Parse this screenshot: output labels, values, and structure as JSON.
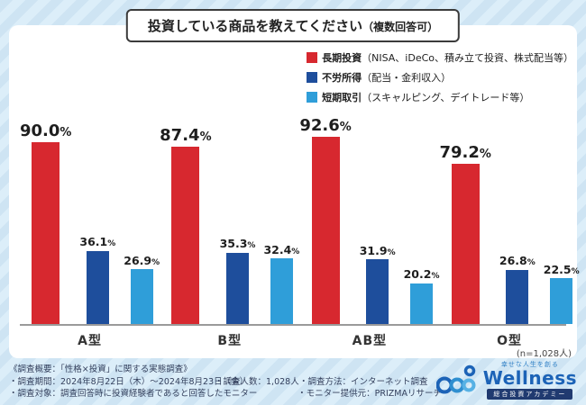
{
  "title": {
    "main": "投資している商品を教えてください",
    "sub": "（複数回答可）"
  },
  "legend": [
    {
      "label": "長期投資",
      "detail": "（NISA、iDeCo、積み立て投資、株式配当等）",
      "color": "#d7282f"
    },
    {
      "label": "不労所得",
      "detail": "（配当・金利収入）",
      "color": "#1e4e9c"
    },
    {
      "label": "短期取引",
      "detail": "（スキャルピング、デイトレード等）",
      "color": "#2f9ed9"
    }
  ],
  "chart_data": {
    "type": "bar",
    "title": "投資している商品を教えてください（複数回答可）",
    "categories": [
      "A型",
      "B型",
      "AB型",
      "O型"
    ],
    "series": [
      {
        "name": "長期投資（NISA、iDeCo、積み立て投資、株式配当等）",
        "color": "#d7282f",
        "values": [
          90.0,
          87.4,
          92.6,
          79.2
        ]
      },
      {
        "name": "不労所得（配当・金利収入）",
        "color": "#1e4e9c",
        "values": [
          36.1,
          35.3,
          31.9,
          26.8
        ]
      },
      {
        "name": "短期取引（スキャルピング、デイトレード等）",
        "color": "#2f9ed9",
        "values": [
          26.9,
          32.4,
          20.2,
          22.5
        ]
      }
    ],
    "xlabel": "",
    "ylabel": "",
    "ylim": [
      0,
      100
    ],
    "value_suffix": "%",
    "grid": false,
    "legend_position": "top-right"
  },
  "sample_note": "(n=1,028人)",
  "footer": {
    "line1": "《調査概要：「性格×投資」に関する実態調査》",
    "row2": [
      "・調査期間：2024年8月22日（木）～2024年8月23日（金）",
      "・調査人数：1,028人",
      "・調査方法：インターネット調査"
    ],
    "row3": [
      "・調査対象：調査回答時に投資経験者であると回答したモニター",
      "・モニター提供元：PRIZMAリサーチ"
    ]
  },
  "logo": {
    "tagline": "幸せな人生を創る",
    "name": "Wellness",
    "subtitle": "総合投資アカデミー"
  }
}
